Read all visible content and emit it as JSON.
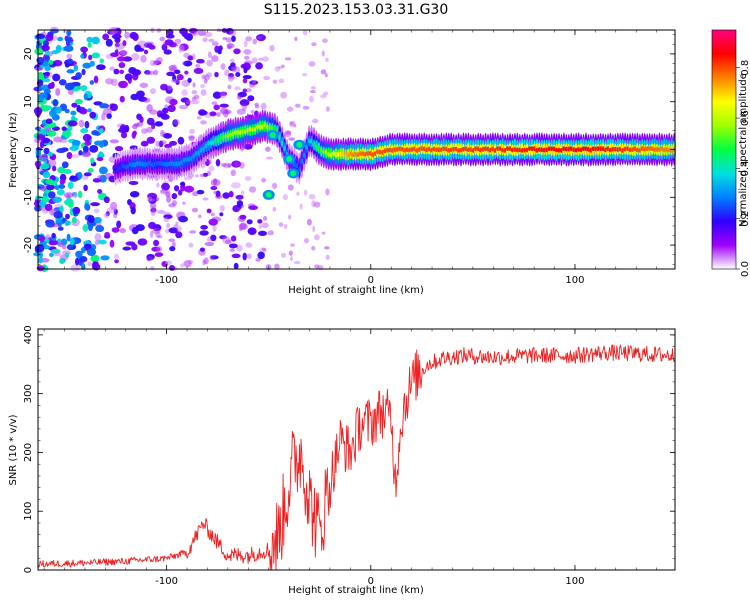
{
  "title": "S115.2023.153.03.31.G30",
  "chart_data": [
    {
      "type": "heatmap",
      "name": "spectrogram",
      "xlabel": "Height of straight line (km)",
      "ylabel": "Frequency (Hz)",
      "xlim": [
        -163,
        149
      ],
      "ylim": [
        -25,
        25
      ],
      "xticks": [
        -100,
        0,
        100
      ],
      "yticks": [
        -20,
        -10,
        0,
        10,
        20
      ],
      "colorbar": {
        "label": "Normalized spectral amplitude",
        "range": [
          0,
          0.95
        ],
        "ticks": [
          0.0,
          0.2,
          0.4,
          0.6,
          0.8
        ],
        "colormap": [
          "#ffffff",
          "#a000ff",
          "#3000ff",
          "#0080ff",
          "#00e0e0",
          "#00ff40",
          "#a0ff00",
          "#ffff00",
          "#ff8000",
          "#ff0000",
          "#ff0080"
        ]
      },
      "ridge": {
        "x": [
          -125,
          -115,
          -105,
          -95,
          -88,
          -80,
          -70,
          -60,
          -52,
          -46,
          -40,
          -35,
          -30,
          -25,
          -20,
          -10,
          0,
          10,
          30,
          60,
          90,
          110,
          130,
          149
        ],
        "y": [
          -4,
          -3,
          -3,
          -3,
          -2,
          1,
          3,
          4,
          5,
          4,
          -2,
          -4,
          2,
          0,
          -1,
          -1,
          -1,
          0,
          0,
          0,
          0,
          0,
          0,
          0
        ],
        "amplitude": [
          0.2,
          0.3,
          0.25,
          0.3,
          0.3,
          0.35,
          0.55,
          0.6,
          0.6,
          0.45,
          0.3,
          0.25,
          0.35,
          0.5,
          0.6,
          0.75,
          0.8,
          0.8,
          0.8,
          0.82,
          0.85,
          0.85,
          0.8,
          0.75
        ]
      }
    },
    {
      "type": "line",
      "name": "snr",
      "xlabel": "Height of straight line (km)",
      "ylabel": "SNR (10 * v/v)",
      "xlim": [
        -163,
        149
      ],
      "ylim": [
        0,
        410
      ],
      "xticks": [
        -100,
        0,
        100
      ],
      "yticks": [
        0,
        100,
        200,
        300,
        400
      ],
      "color": "#ee2222",
      "keypoints": {
        "x": [
          -163,
          -140,
          -120,
          -100,
          -90,
          -82,
          -78,
          -70,
          -60,
          -50,
          -45,
          -38,
          -34,
          -30,
          -25,
          -22,
          -15,
          -10,
          -5,
          0,
          5,
          10,
          12,
          15,
          18,
          22,
          28,
          35,
          45,
          60,
          80,
          100,
          115,
          130,
          149
        ],
        "y": [
          10,
          12,
          15,
          20,
          30,
          80,
          60,
          25,
          25,
          35,
          60,
          180,
          200,
          120,
          60,
          120,
          220,
          200,
          250,
          250,
          270,
          260,
          150,
          260,
          300,
          330,
          350,
          360,
          365,
          362,
          365,
          365,
          370,
          368,
          365
        ]
      }
    }
  ]
}
